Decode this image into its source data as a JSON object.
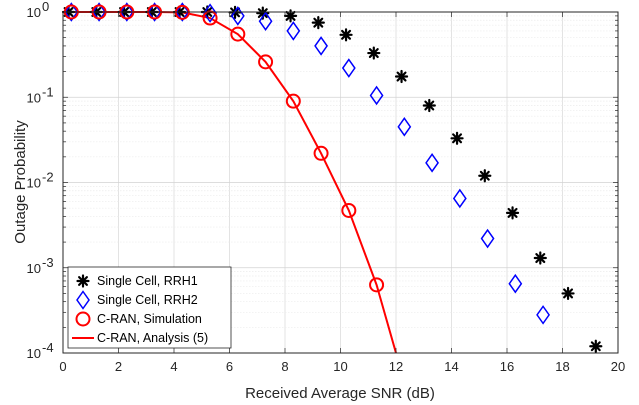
{
  "chart_data": {
    "type": "scatter",
    "xlabel": "Received Average SNR (dB)",
    "ylabel": "Outage Probability",
    "xlim": [
      0,
      20
    ],
    "ylim": [
      0.0001,
      1
    ],
    "yscale": "log",
    "grid": true,
    "legend_position": "bottom-left",
    "x_ticks": [
      "0",
      "2",
      "4",
      "6",
      "8",
      "10",
      "12",
      "14",
      "16",
      "18",
      "20"
    ],
    "y_ticks": [
      {
        "base": "10",
        "exp": "-4"
      },
      {
        "base": "10",
        "exp": "-3"
      },
      {
        "base": "10",
        "exp": "-2"
      },
      {
        "base": "10",
        "exp": "-1"
      },
      {
        "base": "10",
        "exp": "0"
      }
    ],
    "series": [
      {
        "name": "Single Cell, RRH1",
        "marker": "asterisk",
        "color": "#000000",
        "x": [
          0.2,
          1.2,
          2.2,
          3.2,
          4.2,
          5.2,
          6.2,
          7.2,
          8.2,
          9.2,
          10.2,
          11.2,
          12.2,
          13.2,
          14.2,
          15.2,
          16.2,
          17.2,
          18.2,
          19.2
        ],
        "y": [
          1.0,
          1.0,
          1.0,
          1.0,
          1.0,
          1.0,
          0.99,
          0.97,
          0.9,
          0.75,
          0.54,
          0.33,
          0.175,
          0.08,
          0.033,
          0.012,
          0.0044,
          0.0013,
          0.0005,
          0.00012
        ]
      },
      {
        "name": "Single Cell, RRH2",
        "marker": "diamond",
        "color": "#0000ff",
        "x": [
          0.3,
          1.3,
          2.3,
          3.3,
          4.3,
          5.3,
          6.3,
          7.3,
          8.3,
          9.3,
          10.3,
          11.3,
          12.3,
          13.3,
          14.3,
          15.3,
          16.3,
          17.3
        ],
        "y": [
          1.0,
          1.0,
          1.0,
          1.0,
          1.0,
          0.97,
          0.9,
          0.78,
          0.6,
          0.4,
          0.22,
          0.105,
          0.045,
          0.017,
          0.0065,
          0.0022,
          0.00065,
          0.00028
        ]
      },
      {
        "name": "C-RAN, Simulation",
        "marker": "circle",
        "color": "#ff0000",
        "x": [
          0.3,
          1.3,
          2.3,
          3.3,
          4.3,
          5.3,
          6.3,
          7.3,
          8.3,
          9.3,
          10.3,
          11.3
        ],
        "y": [
          1.0,
          1.0,
          1.0,
          1.0,
          0.99,
          0.85,
          0.55,
          0.26,
          0.09,
          0.022,
          0.0047,
          0.00063
        ]
      },
      {
        "name": "C-RAN, Analysis (5)",
        "marker": "line",
        "color": "#ff0000",
        "x": [
          0.3,
          1.3,
          2.3,
          3.3,
          4.3,
          5.3,
          6.3,
          7.3,
          8.3,
          9.3,
          10.3,
          11.3,
          12.0
        ],
        "y": [
          1.0,
          1.0,
          1.0,
          1.0,
          0.99,
          0.85,
          0.55,
          0.26,
          0.09,
          0.022,
          0.0047,
          0.00063,
          0.0001
        ]
      }
    ]
  }
}
